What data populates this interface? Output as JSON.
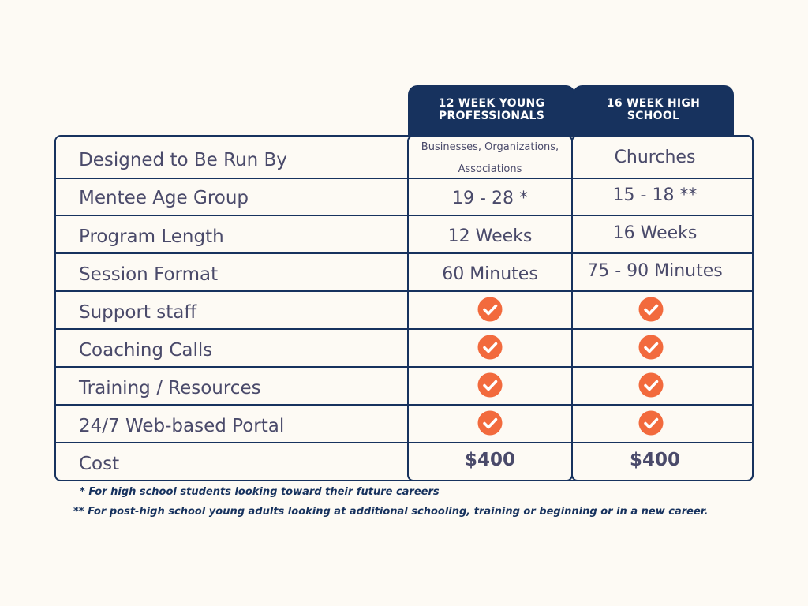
{
  "columns": [
    {
      "title": "12 WEEK YOUNG PROFESSIONALS"
    },
    {
      "title": "16 WEEK HIGH SCHOOL"
    }
  ],
  "rows": [
    {
      "label": "Designed to Be Run By",
      "col1": "Businesses, Organizations, Associations",
      "col2": "Churches"
    },
    {
      "label": "Mentee Age Group",
      "col1": "19 - 28 *",
      "col2": "15 - 18 **"
    },
    {
      "label": "Program Length",
      "col1": "12 Weeks",
      "col2": "16 Weeks"
    },
    {
      "label": "Session Format",
      "col1": "60 Minutes",
      "col2": "75 - 90 Minutes"
    },
    {
      "label": "Support staff",
      "col1_check": true,
      "col2_check": true
    },
    {
      "label": "Coaching Calls",
      "col1_check": true,
      "col2_check": true
    },
    {
      "label": "Training / Resources",
      "col1_check": true,
      "col2_check": true
    },
    {
      "label": "24/7 Web-based Portal",
      "col1_check": true,
      "col2_check": true
    },
    {
      "label": "Cost",
      "col1": "$400",
      "col2": "$400"
    }
  ],
  "check_icon": "check-circle-icon",
  "colors": {
    "navy": "#17325e",
    "check_orange": "#f26a3d",
    "text_gray": "#4a4a6a",
    "background": "#fdfaf4"
  },
  "footnotes": [
    "* For high school students looking toward their future careers",
    "** For post-high school young adults looking at additional schooling, training or beginning or in a new career."
  ]
}
